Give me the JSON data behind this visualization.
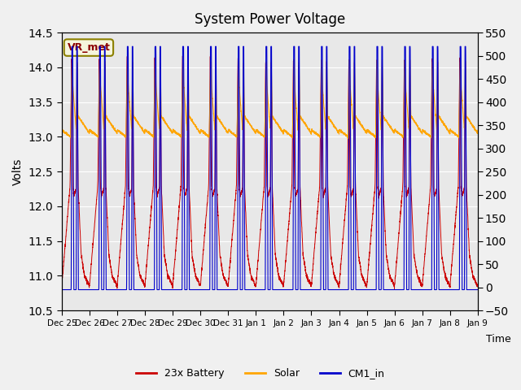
{
  "title": "System Power Voltage",
  "xlabel": "Time",
  "ylabel": "Volts",
  "ylim_left": [
    10.5,
    14.5
  ],
  "ylim_right": [
    -50,
    550
  ],
  "yticks_left": [
    10.5,
    11.0,
    11.5,
    12.0,
    12.5,
    13.0,
    13.5,
    14.0,
    14.5
  ],
  "yticks_right": [
    -50,
    0,
    50,
    100,
    150,
    200,
    250,
    300,
    350,
    400,
    450,
    500,
    550
  ],
  "background_color": "#f0f0f0",
  "plot_bg_color": "#e8e8e8",
  "grid_color": "#ffffff",
  "annotation_text": "VR_met",
  "annotation_color": "#8b0000",
  "annotation_bg": "#f5f5dc",
  "annotation_border": "#8b8000",
  "line_battery_color": "#cc0000",
  "line_solar_color": "#ffa500",
  "line_cm1_color": "#0000cc",
  "legend_labels": [
    "23x Battery",
    "Solar",
    "CM1_in"
  ],
  "total_hours": 360,
  "xtick_labels": [
    "Dec 25",
    "Dec 26",
    "Dec 27",
    "Dec 28",
    "Dec 29",
    "Dec 30",
    "Dec 31",
    "Jan 1",
    "Jan 2",
    "Jan 3",
    "Jan 4",
    "Jan 5",
    "Jan 6",
    "Jan 7",
    "Jan 8",
    "Jan 9"
  ]
}
